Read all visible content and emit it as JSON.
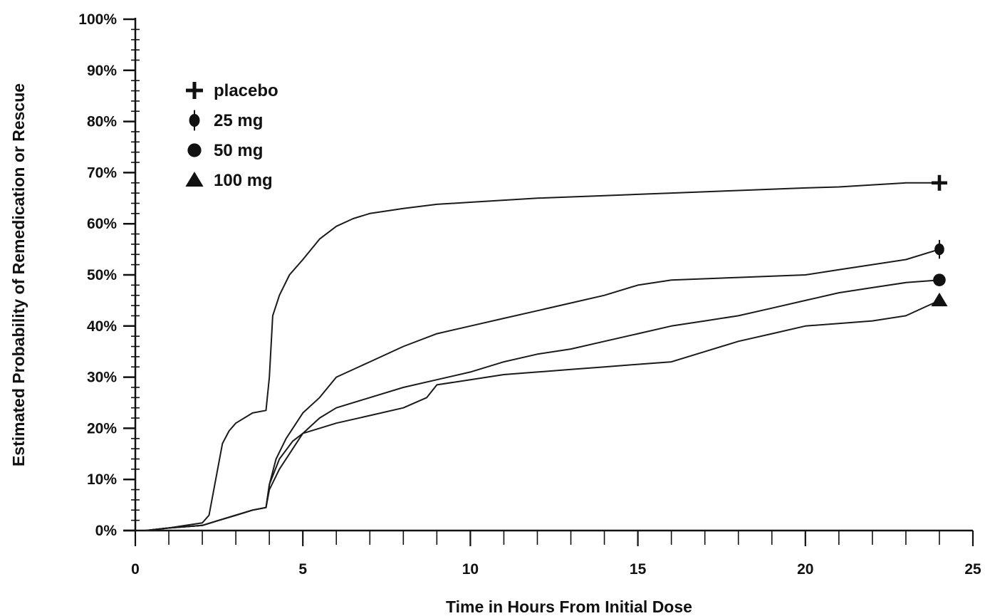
{
  "chart_data": {
    "type": "line",
    "title": "",
    "xlabel": "Time in Hours From Initial Dose",
    "ylabel": "Estimated Probability of Remedication or Rescue",
    "xlim": [
      0,
      25
    ],
    "ylim": [
      0,
      100
    ],
    "x_ticks": [
      0,
      5,
      10,
      15,
      20,
      25
    ],
    "y_ticks": [
      0,
      10,
      20,
      30,
      40,
      50,
      60,
      70,
      80,
      90,
      100
    ],
    "x_tick_labels": [
      "0",
      "5",
      "10",
      "15",
      "20",
      "25"
    ],
    "y_tick_labels": [
      "0%",
      "10%",
      "20%",
      "30%",
      "40%",
      "50%",
      "60%",
      "70%",
      "80%",
      "90%",
      "100%"
    ],
    "grid": false,
    "legend_position": "top-left",
    "legend": [
      {
        "label": "placebo",
        "marker": "plus"
      },
      {
        "label": "25 mg",
        "marker": "diamond"
      },
      {
        "label": "50 mg",
        "marker": "circle"
      },
      {
        "label": "100 mg",
        "marker": "triangle"
      }
    ],
    "series": [
      {
        "name": "placebo",
        "marker": "plus",
        "x": [
          0.3,
          1,
          1.5,
          2,
          2.2,
          2.4,
          2.6,
          2.8,
          3,
          3.5,
          3.9,
          4.0,
          4.1,
          4.3,
          4.6,
          5,
          5.5,
          6,
          6.5,
          7,
          8,
          9,
          10,
          12,
          14,
          16,
          18,
          20,
          21,
          22,
          23,
          24
        ],
        "y": [
          0,
          0.5,
          1,
          1.5,
          3,
          10,
          17,
          19.5,
          21,
          23,
          23.5,
          30,
          42,
          46,
          50,
          53,
          57,
          59.5,
          61,
          62,
          63,
          63.8,
          64.2,
          65,
          65.5,
          66,
          66.5,
          67,
          67.2,
          67.6,
          68,
          68
        ]
      },
      {
        "name": "25 mg",
        "marker": "diamond",
        "x": [
          0.3,
          1,
          2,
          2.5,
          3,
          3.5,
          3.9,
          4.0,
          4.2,
          4.5,
          5,
          5.5,
          6,
          7,
          8,
          9,
          10,
          11,
          12,
          13,
          14,
          15,
          16,
          18,
          20,
          21,
          22,
          23,
          24
        ],
        "y": [
          0,
          0.5,
          1,
          2,
          3,
          4,
          4.5,
          9,
          14,
          18,
          23,
          26,
          30,
          33,
          36,
          38.5,
          40,
          41.5,
          43,
          44.5,
          46,
          48,
          49,
          49.5,
          50,
          51,
          52,
          53,
          55
        ]
      },
      {
        "name": "50 mg",
        "marker": "circle",
        "x": [
          0.3,
          1,
          2,
          2.5,
          3,
          3.5,
          3.9,
          4.0,
          4.3,
          4.7,
          5,
          5.5,
          6,
          7,
          8,
          9,
          10,
          11,
          12,
          13,
          14,
          15,
          16,
          17,
          18,
          19,
          20,
          21,
          22,
          23,
          24
        ],
        "y": [
          0,
          0.5,
          1,
          2,
          3,
          4,
          4.5,
          8,
          12,
          16,
          19,
          22,
          24,
          26,
          28,
          29.5,
          31,
          33,
          34.5,
          35.5,
          37,
          38.5,
          40,
          41,
          42,
          43.5,
          45,
          46.5,
          47.5,
          48.5,
          49
        ]
      },
      {
        "name": "100 mg",
        "marker": "triangle",
        "x": [
          0.3,
          1,
          2,
          2.5,
          3,
          3.5,
          3.9,
          4.0,
          4.3,
          4.7,
          5,
          5.5,
          6,
          7,
          8,
          8.7,
          9,
          10,
          11,
          12,
          13,
          14,
          15,
          16,
          17,
          18,
          19,
          20,
          21,
          22,
          23,
          24
        ],
        "y": [
          0,
          0.5,
          1,
          2,
          3,
          4,
          4.5,
          9,
          14,
          17.5,
          19,
          20,
          21,
          22.5,
          24,
          26,
          28.5,
          29.5,
          30.5,
          31,
          31.5,
          32,
          32.5,
          33,
          35,
          37,
          38.5,
          40,
          40.5,
          41,
          42,
          45
        ]
      }
    ]
  }
}
